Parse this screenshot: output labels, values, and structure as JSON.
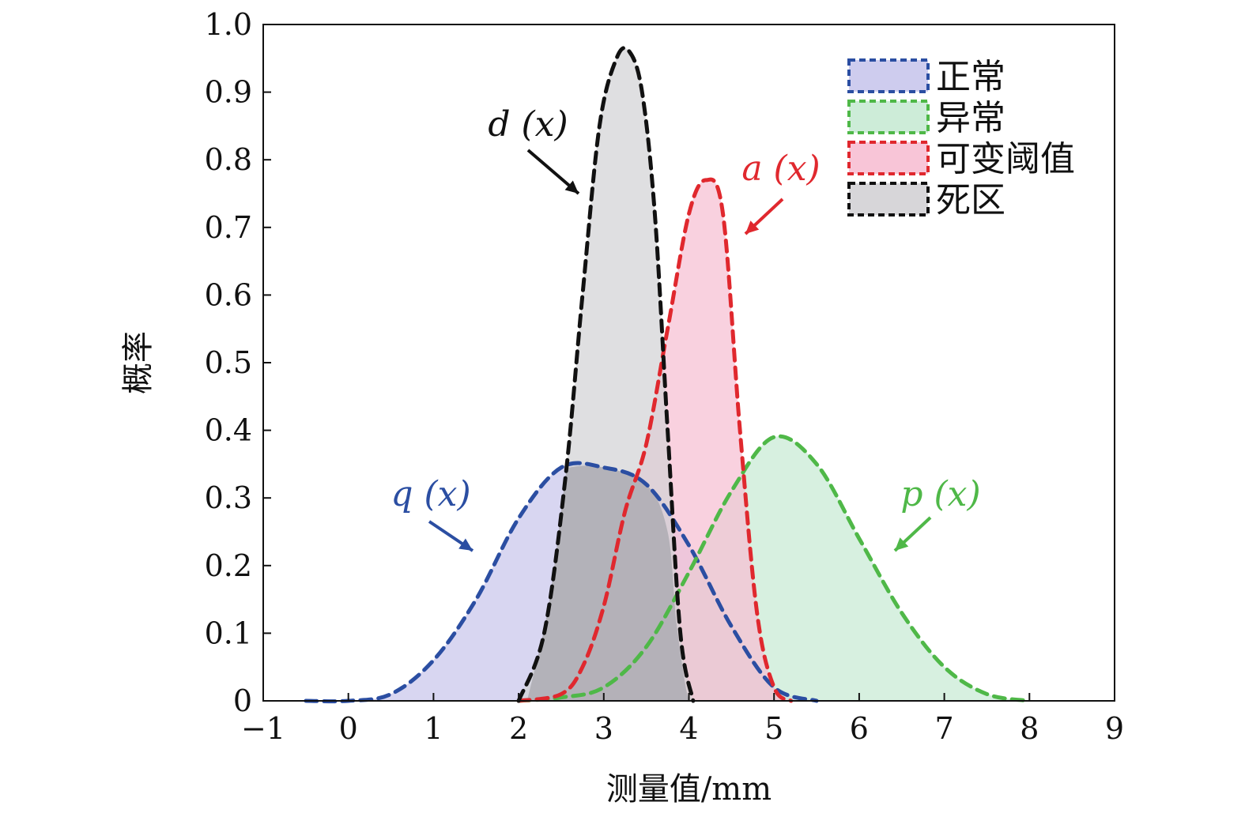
{
  "chart_data": {
    "type": "area",
    "title": "",
    "xlabel": "测量值/mm",
    "ylabel": "概率",
    "xlim": [
      -1,
      9
    ],
    "ylim": [
      0,
      1.0
    ],
    "xticks": [
      -1,
      0,
      1,
      2,
      3,
      4,
      5,
      6,
      7,
      8,
      9
    ],
    "xtick_labels": [
      "−1",
      "0",
      "1",
      "2",
      "3",
      "4",
      "5",
      "6",
      "7",
      "8",
      "9"
    ],
    "yticks": [
      0,
      0.1,
      0.2,
      0.3,
      0.4,
      0.5,
      0.6,
      0.7,
      0.8,
      0.9,
      1.0
    ],
    "ytick_labels": [
      "0",
      "0.1",
      "0.2",
      "0.3",
      "0.4",
      "0.5",
      "0.6",
      "0.7",
      "0.8",
      "0.9",
      "1.0"
    ],
    "grid": false,
    "legend_position": "top-right",
    "series": [
      {
        "name": "正常",
        "curve_label": "q (x)",
        "stroke": "#2b4ea2",
        "fill": "#c9c6ec",
        "x": [
          -0.5,
          0,
          0.5,
          1,
          1.5,
          2,
          2.5,
          3,
          3.5,
          4,
          4.5,
          5,
          5.5
        ],
        "y": [
          0,
          0,
          0.01,
          0.06,
          0.15,
          0.27,
          0.345,
          0.345,
          0.32,
          0.23,
          0.11,
          0.02,
          0
        ]
      },
      {
        "name": "异常",
        "curve_label": "p (x)",
        "stroke": "#4fb848",
        "fill": "#c8ead4",
        "x": [
          2,
          2.5,
          3,
          3.5,
          4,
          4.5,
          5,
          5.5,
          6,
          6.5,
          7,
          7.5,
          8
        ],
        "y": [
          0,
          0.005,
          0.02,
          0.08,
          0.19,
          0.31,
          0.39,
          0.35,
          0.24,
          0.13,
          0.05,
          0.01,
          0
        ]
      },
      {
        "name": "可变阈值",
        "curve_label": "a (x)",
        "stroke": "#e0282e",
        "fill": "#f7bfd3",
        "x": [
          2,
          2.5,
          2.75,
          3,
          3.25,
          3.5,
          3.75,
          4,
          4.2,
          4.4,
          4.6,
          4.8,
          5,
          5.2
        ],
        "y": [
          0,
          0.01,
          0.05,
          0.14,
          0.28,
          0.38,
          0.55,
          0.72,
          0.77,
          0.72,
          0.4,
          0.13,
          0.02,
          0
        ]
      },
      {
        "name": "死区",
        "curve_label": "d (x)",
        "stroke": "#111111",
        "fill": "#d3d2d5",
        "x": [
          2,
          2.3,
          2.55,
          2.75,
          2.95,
          3.15,
          3.3,
          3.45,
          3.6,
          3.75,
          3.9,
          4.05
        ],
        "y": [
          0,
          0.1,
          0.33,
          0.6,
          0.85,
          0.95,
          0.96,
          0.9,
          0.72,
          0.4,
          0.1,
          0
        ]
      }
    ],
    "overlap_region": {
      "name": "dead-zone-overlap",
      "fill": "#adabb3",
      "x": [
        2.1,
        2.35,
        2.55,
        2.6,
        3,
        3.5,
        3.75,
        3.85,
        3.95,
        4.0
      ],
      "y": [
        0,
        0.14,
        0.33,
        0.345,
        0.345,
        0.32,
        0.25,
        0.12,
        0.03,
        0
      ]
    }
  }
}
